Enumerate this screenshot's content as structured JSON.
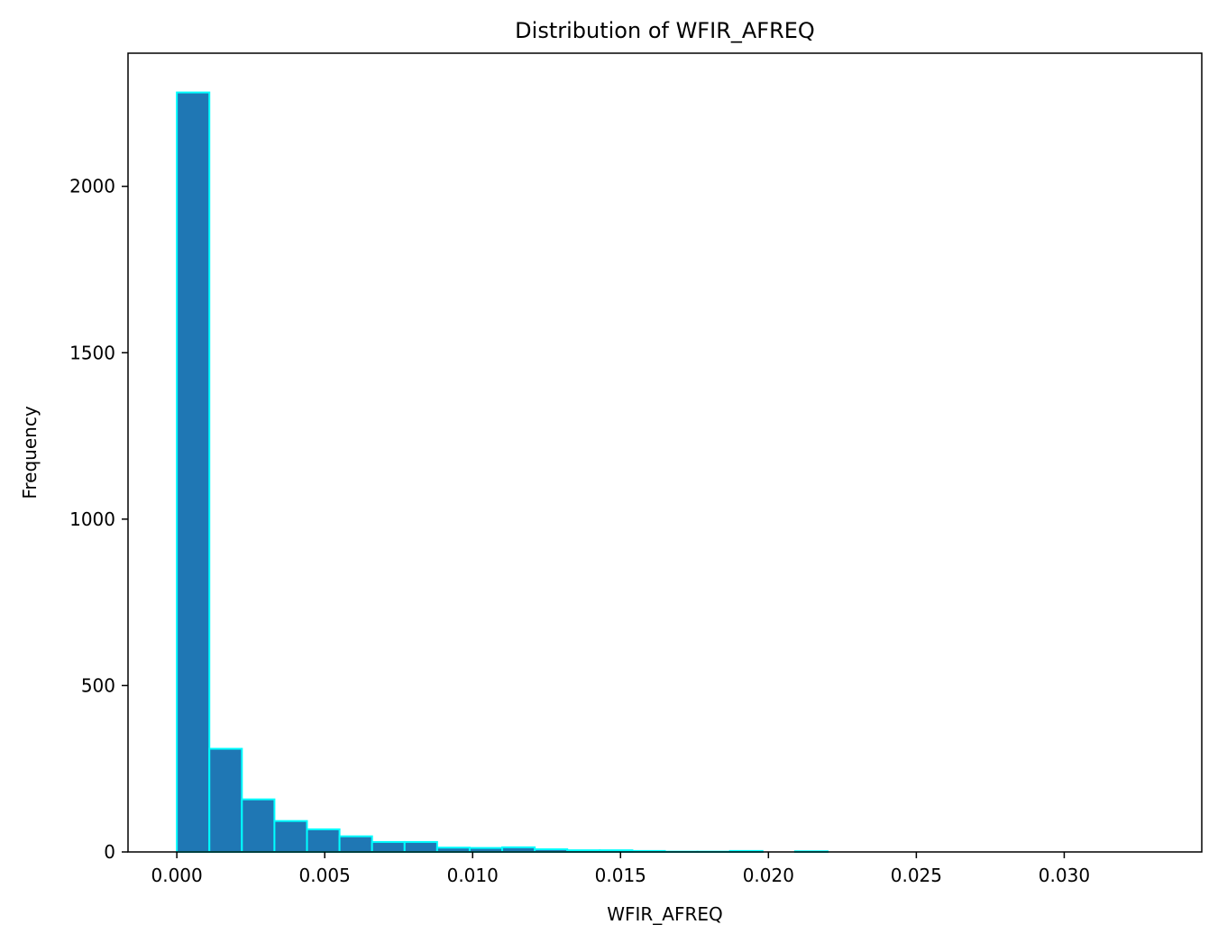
{
  "chart_data": {
    "type": "bar",
    "title": "Distribution of WFIR_AFREQ",
    "xlabel": "WFIR_AFREQ",
    "ylabel": "Frequency",
    "xlim": [
      -0.00165,
      0.03465
    ],
    "ylim": [
      0,
      2400
    ],
    "x_ticks": [
      0.0,
      0.005,
      0.01,
      0.015,
      0.02,
      0.025,
      0.03
    ],
    "x_tick_labels": [
      "0.000",
      "0.005",
      "0.010",
      "0.015",
      "0.020",
      "0.025",
      "0.030"
    ],
    "y_ticks": [
      0,
      500,
      1000,
      1500,
      2000
    ],
    "y_tick_labels": [
      "0",
      "500",
      "1000",
      "1500",
      "2000"
    ],
    "bin_start": 0.0,
    "bin_width": 0.0011,
    "values": [
      2282,
      310,
      158,
      93,
      68,
      47,
      30,
      30,
      13,
      12,
      14,
      8,
      5,
      5,
      3,
      1,
      1,
      3,
      0,
      2,
      0,
      0,
      0,
      0,
      0,
      0,
      0,
      0,
      0,
      0
    ],
    "grid": false,
    "legend": "none",
    "colors": {
      "bar_fill": "#1f77b4",
      "bar_edge": "#00ffff",
      "axes": "#000000"
    }
  }
}
